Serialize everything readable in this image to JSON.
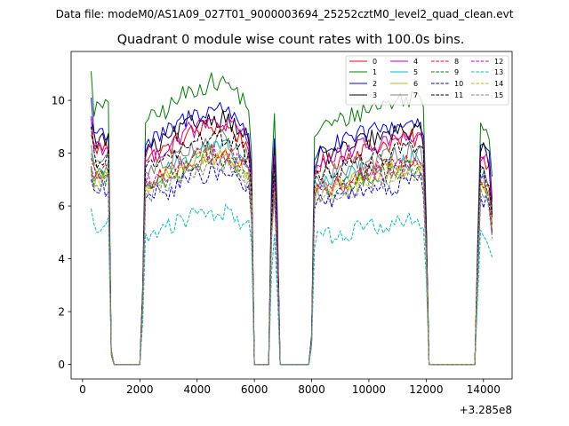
{
  "chart_data": {
    "type": "line",
    "supertitle": "Data file: modeM0/AS1A09_027T01_9000003694_25252cztM0_level2_quad_clean.evt",
    "title": "Quadrant 0 module wise count rates with 100.0s bins.",
    "xlabel": "",
    "ylabel": "",
    "x_offset_label": "+3.285e8",
    "xlim": [
      -400,
      15000
    ],
    "ylim": [
      -0.55,
      11.85
    ],
    "x_ticks": [
      0,
      2000,
      4000,
      6000,
      8000,
      10000,
      12000,
      14000
    ],
    "y_ticks": [
      0,
      2,
      4,
      6,
      8,
      10
    ],
    "grid": false,
    "legend_position": "top-right",
    "x_start": 300,
    "x_step": 100,
    "x_end": 14300,
    "base_shape": [
      [
        300,
        1.0
      ],
      [
        700,
        1.0
      ],
      [
        900,
        1.0
      ],
      [
        1000,
        0.06
      ],
      [
        1100,
        0.0
      ],
      [
        2000,
        0.0
      ],
      [
        2100,
        0.32
      ],
      [
        2200,
        0.96
      ],
      [
        2300,
        0.95
      ],
      [
        3000,
        1.0
      ],
      [
        3500,
        1.05
      ],
      [
        4000,
        1.08
      ],
      [
        4500,
        1.1
      ],
      [
        5000,
        1.1
      ],
      [
        5500,
        1.05
      ],
      [
        5800,
        1.0
      ],
      [
        5900,
        0.85
      ],
      [
        6000,
        0.0
      ],
      [
        6500,
        0.0
      ],
      [
        6600,
        0.72
      ],
      [
        6700,
        0.95
      ],
      [
        6800,
        0.58
      ],
      [
        6900,
        0.0
      ],
      [
        7900,
        0.0
      ],
      [
        8000,
        0.12
      ],
      [
        8100,
        0.9
      ],
      [
        8200,
        0.92
      ],
      [
        9000,
        0.95
      ],
      [
        10000,
        1.0
      ],
      [
        11000,
        1.03
      ],
      [
        11800,
        1.05
      ],
      [
        11900,
        1.0
      ],
      [
        12000,
        0.6
      ],
      [
        12100,
        0.0
      ],
      [
        13700,
        0.0
      ],
      [
        13800,
        0.5
      ],
      [
        13900,
        0.96
      ],
      [
        14000,
        0.95
      ],
      [
        14200,
        0.9
      ],
      [
        14300,
        0.72
      ]
    ],
    "series": [
      {
        "name": "0",
        "color": "#ff0000",
        "dash": "solid",
        "level": 8.2,
        "start": 8.7
      },
      {
        "name": "1",
        "color": "#008000",
        "dash": "solid",
        "level": 9.7,
        "start": 11.1
      },
      {
        "name": "2",
        "color": "#0000ff",
        "dash": "solid",
        "level": 8.8,
        "start": 10.1
      },
      {
        "name": "3",
        "color": "#000000",
        "dash": "solid",
        "level": 8.5,
        "start": 9.3
      },
      {
        "name": "4",
        "color": "#bf00bf",
        "dash": "solid",
        "level": 8.3,
        "start": 9.4
      },
      {
        "name": "5",
        "color": "#00bfbf",
        "dash": "solid",
        "level": 7.4,
        "start": 8.0
      },
      {
        "name": "6",
        "color": "#bfbf00",
        "dash": "solid",
        "level": 7.2,
        "start": 7.6
      },
      {
        "name": "7",
        "color": "#808080",
        "dash": "solid",
        "level": 7.7,
        "start": 8.3
      },
      {
        "name": "8",
        "color": "#ff0000",
        "dash": "dashed",
        "level": 7.3,
        "start": 7.8
      },
      {
        "name": "9",
        "color": "#008000",
        "dash": "dashed",
        "level": 7.1,
        "start": 7.4
      },
      {
        "name": "10",
        "color": "#0000ff",
        "dash": "dashed",
        "level": 6.6,
        "start": 7.0
      },
      {
        "name": "11",
        "color": "#000000",
        "dash": "dashed",
        "level": 7.8,
        "start": 9.0
      },
      {
        "name": "12",
        "color": "#bf00bf",
        "dash": "dashed",
        "level": 7.2,
        "start": 7.5
      },
      {
        "name": "13",
        "color": "#00bfbf",
        "dash": "dashed",
        "level": 5.2,
        "start": 5.9
      },
      {
        "name": "14",
        "color": "#bfbf00",
        "dash": "dashed",
        "level": 7.0,
        "start": 7.3
      },
      {
        "name": "15",
        "color": "#808080",
        "dash": "dashed",
        "level": 6.8,
        "start": 7.2
      }
    ]
  }
}
